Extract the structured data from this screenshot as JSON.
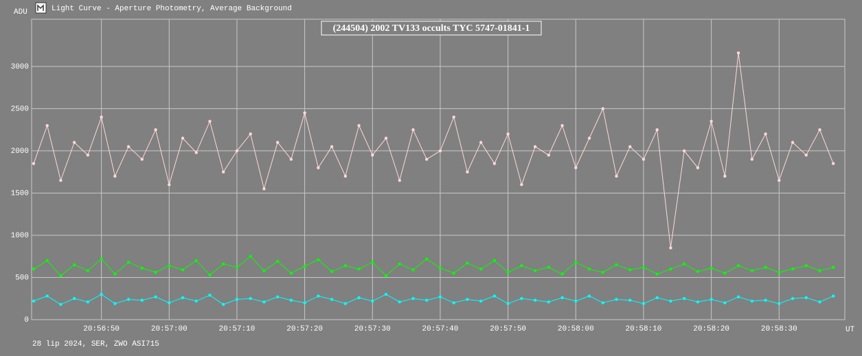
{
  "window_title": "Light Curve - Aperture Photometry, Average Background",
  "footer": "28 lip 2024, SER, ZWO ASI715",
  "chart_data": {
    "type": "line",
    "title": "(244504) 2002 TV133 occults TYC 5747-01841-1",
    "y_label": "ADU",
    "x_label": "UT",
    "grid": true,
    "xlim": [
      75399.7,
      75519.7
    ],
    "ylim": [
      0,
      3560
    ],
    "yticks": [
      0,
      500,
      1000,
      1500,
      2000,
      2500,
      3000
    ],
    "xticks": [
      {
        "value": 75410,
        "label": "20:56:50"
      },
      {
        "value": 75420,
        "label": "20:57:00"
      },
      {
        "value": 75430,
        "label": "20:57:10"
      },
      {
        "value": 75440,
        "label": "20:57:20"
      },
      {
        "value": 75450,
        "label": "20:57:30"
      },
      {
        "value": 75460,
        "label": "20:57:40"
      },
      {
        "value": 75470,
        "label": "20:57:50"
      },
      {
        "value": 75480,
        "label": "20:58:00"
      },
      {
        "value": 75490,
        "label": "20:58:10"
      },
      {
        "value": 75500,
        "label": "20:58:20"
      },
      {
        "value": 75510,
        "label": "20:58:30"
      }
    ],
    "x": [
      75400,
      75402,
      75404,
      75406,
      75408,
      75410,
      75412,
      75414,
      75416,
      75418,
      75420,
      75422,
      75424,
      75426,
      75428,
      75430,
      75432,
      75434,
      75436,
      75438,
      75440,
      75442,
      75444,
      75446,
      75448,
      75450,
      75452,
      75454,
      75456,
      75458,
      75460,
      75462,
      75464,
      75466,
      75468,
      75470,
      75472,
      75474,
      75476,
      75478,
      75480,
      75482,
      75484,
      75486,
      75488,
      75490,
      75492,
      75494,
      75496,
      75498,
      75500,
      75502,
      75504,
      75506,
      75508,
      75510,
      75512,
      75514,
      75516,
      75518
    ],
    "series": [
      {
        "color": "#ffd8d8",
        "values": [
          1850,
          2300,
          1650,
          2100,
          1950,
          2400,
          1700,
          2050,
          1900,
          2250,
          1600,
          2150,
          1980,
          2350,
          1750,
          2000,
          2200,
          1550,
          2100,
          1900,
          2450,
          1800,
          2050,
          1700,
          2300,
          1950,
          2150,
          1650,
          2250,
          1900,
          2000,
          2400,
          1750,
          2100,
          1850,
          2200,
          1600,
          2050,
          1950,
          2300,
          1800,
          2150,
          2500,
          1700,
          2050,
          1900,
          2250,
          850,
          2000,
          1800,
          2350,
          1700,
          3160,
          1900,
          2200,
          1650,
          2100,
          1950,
          2250,
          1850
        ]
      },
      {
        "color": "#00ff00",
        "values": [
          600,
          700,
          520,
          650,
          580,
          720,
          540,
          680,
          610,
          560,
          640,
          590,
          700,
          530,
          660,
          620,
          750,
          580,
          690,
          550,
          630,
          710,
          570,
          640,
          600,
          680,
          520,
          660,
          590,
          720,
          610,
          550,
          670,
          600,
          700,
          560,
          640,
          580,
          620,
          540,
          680,
          600,
          560,
          650,
          590,
          620,
          540,
          600,
          660,
          570,
          610,
          550,
          640,
          580,
          620,
          560,
          600,
          640,
          580,
          620
        ]
      },
      {
        "color": "#00ffff",
        "values": [
          220,
          280,
          180,
          250,
          210,
          300,
          190,
          240,
          230,
          270,
          200,
          260,
          220,
          290,
          180,
          240,
          250,
          210,
          270,
          230,
          200,
          280,
          240,
          190,
          260,
          220,
          300,
          210,
          250,
          230,
          270,
          200,
          240,
          220,
          280,
          190,
          250,
          230,
          210,
          260,
          220,
          280,
          200,
          240,
          230,
          190,
          260,
          220,
          250,
          210,
          240,
          200,
          270,
          220,
          230,
          190,
          250,
          260,
          210,
          280
        ]
      }
    ]
  }
}
